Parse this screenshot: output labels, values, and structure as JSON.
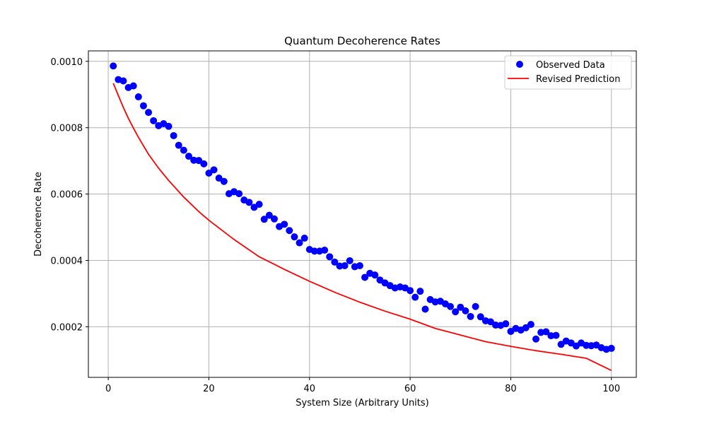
{
  "chart_data": {
    "type": "scatter",
    "title": "Quantum Decoherence Rates",
    "xlabel": "System Size (Arbitrary Units)",
    "ylabel": "Decoherence Rate",
    "xlim": [
      -3.95,
      104.95
    ],
    "ylim": [
      4.75e-05,
      0.0010315
    ],
    "xticks": [
      0,
      20,
      40,
      60,
      80,
      100
    ],
    "xtick_labels": [
      "0",
      "20",
      "40",
      "60",
      "80",
      "100"
    ],
    "yticks": [
      0.0002,
      0.0004,
      0.0006,
      0.0008,
      0.001
    ],
    "ytick_labels": [
      "0.0002",
      "0.0004",
      "0.0006",
      "0.0008",
      "0.0010"
    ],
    "grid": true,
    "legend_position": "top-right",
    "series": [
      {
        "name": "Observed Data",
        "kind": "markers",
        "color": "#0000ff",
        "x": [
          1,
          2,
          3,
          4,
          5,
          6,
          7,
          8,
          9,
          10,
          11,
          12,
          13,
          14,
          15,
          16,
          17,
          18,
          19,
          20,
          21,
          22,
          23,
          24,
          25,
          26,
          27,
          28,
          29,
          30,
          31,
          32,
          33,
          34,
          35,
          36,
          37,
          38,
          39,
          40,
          41,
          42,
          43,
          44,
          45,
          46,
          47,
          48,
          49,
          50,
          51,
          52,
          53,
          54,
          55,
          56,
          57,
          58,
          59,
          60,
          61,
          62,
          63,
          64,
          65,
          66,
          67,
          68,
          69,
          70,
          71,
          72,
          73,
          74,
          75,
          76,
          77,
          78,
          79,
          80,
          81,
          82,
          83,
          84,
          85,
          86,
          87,
          88,
          89,
          90,
          91,
          92,
          93,
          94,
          95,
          96,
          97,
          98,
          99,
          100
        ],
        "y": [
          0.000986,
          0.000945,
          0.000941,
          0.000921,
          0.000926,
          0.000893,
          0.000866,
          0.000846,
          0.000821,
          0.000806,
          0.000812,
          0.000804,
          0.000776,
          0.000747,
          0.000732,
          0.000714,
          0.000702,
          0.000701,
          0.000691,
          0.000663,
          0.000673,
          0.000648,
          0.000638,
          0.000601,
          0.000607,
          0.000601,
          0.000582,
          0.000575,
          0.00056,
          0.000569,
          0.000524,
          0.000536,
          0.000525,
          0.000502,
          0.000509,
          0.00049,
          0.000471,
          0.000453,
          0.000467,
          0.000433,
          0.000428,
          0.000428,
          0.000431,
          0.000411,
          0.000395,
          0.000383,
          0.000384,
          0.000399,
          0.000381,
          0.000384,
          0.000349,
          0.000361,
          0.000356,
          0.000341,
          0.000332,
          0.000324,
          0.000317,
          0.00032,
          0.000317,
          0.000309,
          0.000289,
          0.000307,
          0.000253,
          0.000282,
          0.000275,
          0.000277,
          0.000269,
          0.000261,
          0.000245,
          0.000259,
          0.000248,
          0.000231,
          0.000261,
          0.00023,
          0.000218,
          0.000215,
          0.000205,
          0.000204,
          0.000209,
          0.000186,
          0.000195,
          0.00019,
          0.000197,
          0.000207,
          0.000163,
          0.000183,
          0.000185,
          0.000173,
          0.000174,
          0.000147,
          0.000157,
          0.000151,
          0.000142,
          0.000151,
          0.000144,
          0.000143,
          0.000145,
          0.000137,
          0.000132,
          0.000135
        ]
      },
      {
        "name": "Revised Prediction",
        "kind": "line",
        "color": "#ff0000",
        "x": [
          1,
          2,
          3,
          4,
          5,
          6,
          8,
          10,
          12,
          15,
          18,
          20,
          25,
          30,
          35,
          40,
          45,
          50,
          55,
          60,
          65,
          70,
          75,
          80,
          85,
          90,
          95,
          100
        ],
        "y": [
          0.000934,
          0.000897,
          0.000861,
          0.000828,
          0.000799,
          0.000771,
          0.00072,
          0.000678,
          0.000641,
          0.000591,
          0.000547,
          0.000521,
          0.000463,
          0.000411,
          0.000373,
          0.000337,
          0.000304,
          0.000274,
          0.000247,
          0.000223,
          0.000195,
          0.000175,
          0.000155,
          0.000141,
          0.000128,
          0.000117,
          0.000105,
          6.85e-05
        ]
      }
    ]
  }
}
